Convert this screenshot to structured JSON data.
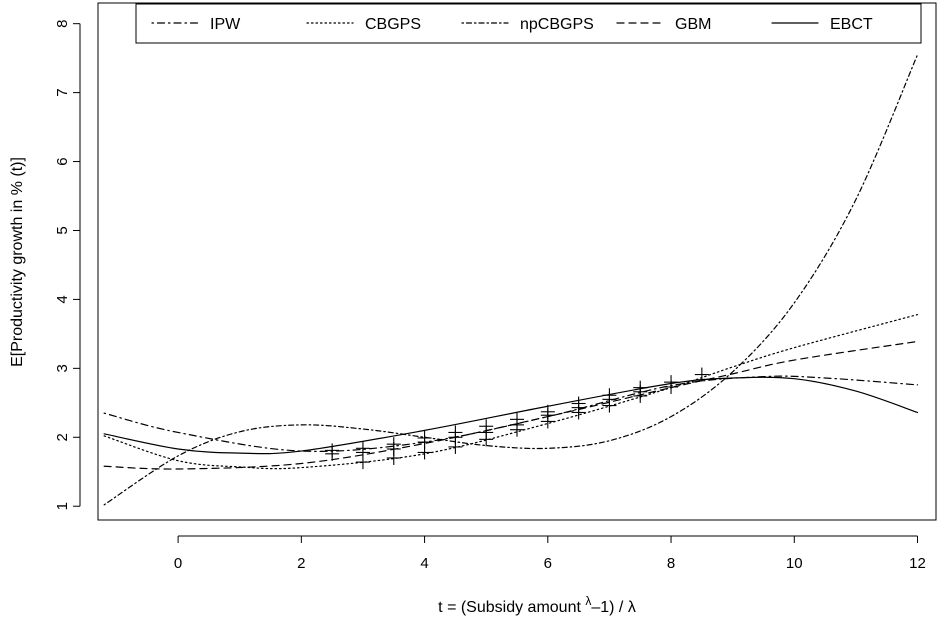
{
  "chart_data": {
    "type": "line",
    "xlabel_parts": {
      "prefix": "t = (Subsidy amount ",
      "superscript": "λ",
      "middle": "–1) / ",
      "suffix": "λ"
    },
    "ylabel": "E[Productivity growth in % (t)]",
    "xlim": [
      -1.3,
      12.3
    ],
    "ylim": [
      0.8,
      8.3
    ],
    "x_ticks": [
      0,
      2,
      4,
      6,
      8,
      10,
      12
    ],
    "y_ticks": [
      1,
      2,
      3,
      4,
      5,
      6,
      7,
      8
    ],
    "grid": false,
    "legend_position": "top",
    "series": [
      {
        "name": "IPW",
        "dash": "dashdot",
        "points": [
          [
            -1.2,
            2.35
          ],
          [
            0,
            2.07
          ],
          [
            2,
            1.8
          ],
          [
            4,
            1.93
          ],
          [
            6,
            2.3
          ],
          [
            8,
            2.75
          ],
          [
            9.5,
            2.88
          ],
          [
            10.5,
            2.86
          ],
          [
            12,
            2.76
          ]
        ]
      },
      {
        "name": "CBGPS",
        "dash": "dotted",
        "points": [
          [
            -1.2,
            2.02
          ],
          [
            0,
            1.66
          ],
          [
            1,
            1.57
          ],
          [
            2,
            1.56
          ],
          [
            4,
            1.76
          ],
          [
            6,
            2.2
          ],
          [
            8,
            2.72
          ],
          [
            9,
            3.02
          ],
          [
            10,
            3.3
          ],
          [
            12,
            3.78
          ]
        ]
      },
      {
        "name": "npCBGPS",
        "dash": "dotdash",
        "points": [
          [
            -1.2,
            1.02
          ],
          [
            0,
            1.73
          ],
          [
            1,
            2.08
          ],
          [
            2,
            2.18
          ],
          [
            3,
            2.12
          ],
          [
            4,
            2.0
          ],
          [
            5,
            1.88
          ],
          [
            6,
            1.84
          ],
          [
            7,
            1.95
          ],
          [
            8,
            2.3
          ],
          [
            9,
            2.95
          ],
          [
            10,
            3.95
          ],
          [
            11,
            5.45
          ],
          [
            12,
            7.55
          ]
        ]
      },
      {
        "name": "GBM",
        "dash": "dashed",
        "points": [
          [
            -1.2,
            1.58
          ],
          [
            0,
            1.54
          ],
          [
            2,
            1.62
          ],
          [
            4,
            1.91
          ],
          [
            6,
            2.3
          ],
          [
            8,
            2.72
          ],
          [
            9,
            2.92
          ],
          [
            10,
            3.12
          ],
          [
            12,
            3.39
          ]
        ]
      },
      {
        "name": "EBCT",
        "dash": "solid",
        "points": [
          [
            -1.2,
            2.05
          ],
          [
            0,
            1.83
          ],
          [
            1,
            1.77
          ],
          [
            2,
            1.8
          ],
          [
            4,
            2.1
          ],
          [
            6,
            2.45
          ],
          [
            8,
            2.78
          ],
          [
            9,
            2.86
          ],
          [
            10,
            2.85
          ],
          [
            11,
            2.67
          ],
          [
            12,
            2.36
          ]
        ]
      }
    ],
    "markers": {
      "symbol": "+",
      "points": [
        [
          2.5,
          1.76
        ],
        [
          2.5,
          1.81
        ],
        [
          3.0,
          1.64
        ],
        [
          3.0,
          1.78
        ],
        [
          3.0,
          1.84
        ],
        [
          3.5,
          1.7
        ],
        [
          3.5,
          1.83
        ],
        [
          3.5,
          1.9
        ],
        [
          4.0,
          1.78
        ],
        [
          4.0,
          1.93
        ],
        [
          4.0,
          1.99
        ],
        [
          4.5,
          1.86
        ],
        [
          4.5,
          2.0
        ],
        [
          4.5,
          2.07
        ],
        [
          5.0,
          1.97
        ],
        [
          5.0,
          2.07
        ],
        [
          5.0,
          2.16
        ],
        [
          5.5,
          2.11
        ],
        [
          5.5,
          2.18
        ],
        [
          5.5,
          2.26
        ],
        [
          6.0,
          2.23
        ],
        [
          6.0,
          2.32
        ],
        [
          6.0,
          2.37
        ],
        [
          6.5,
          2.36
        ],
        [
          6.5,
          2.43
        ],
        [
          6.5,
          2.49
        ],
        [
          7.0,
          2.46
        ],
        [
          7.0,
          2.55
        ],
        [
          7.0,
          2.61
        ],
        [
          7.5,
          2.6
        ],
        [
          7.5,
          2.66
        ],
        [
          7.5,
          2.72
        ],
        [
          8.0,
          2.73
        ],
        [
          8.0,
          2.8
        ],
        [
          8.5,
          2.91
        ]
      ]
    }
  }
}
